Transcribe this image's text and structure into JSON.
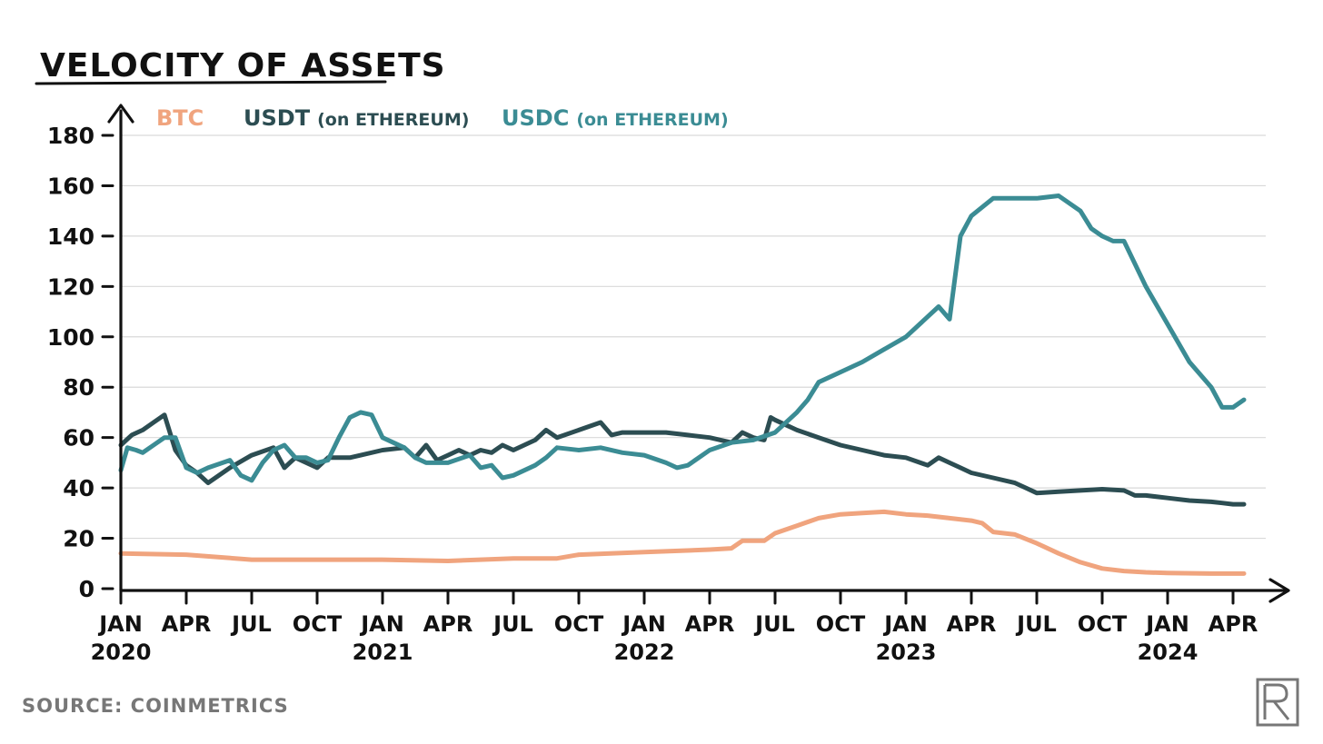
{
  "source_text": "SOURCE: COINMETRICS",
  "logo_icon": "publisher-logo-icon",
  "chart_data": {
    "type": "line",
    "title": "VELOCITY OF ASSETS",
    "xlabel": "",
    "ylabel": "",
    "ylim": [
      0,
      180
    ],
    "xlim": [
      0,
      52.5
    ],
    "x_unit": "months since Jan 2020",
    "yticks": [
      0,
      20,
      40,
      60,
      80,
      100,
      120,
      140,
      160,
      180
    ],
    "xticks": [
      {
        "m": 0,
        "label": "JAN",
        "year": "2020"
      },
      {
        "m": 3,
        "label": "APR",
        "year": ""
      },
      {
        "m": 6,
        "label": "JUL",
        "year": ""
      },
      {
        "m": 9,
        "label": "OCT",
        "year": ""
      },
      {
        "m": 12,
        "label": "JAN",
        "year": "2021"
      },
      {
        "m": 15,
        "label": "APR",
        "year": ""
      },
      {
        "m": 18,
        "label": "JUL",
        "year": ""
      },
      {
        "m": 21,
        "label": "OCT",
        "year": ""
      },
      {
        "m": 24,
        "label": "JAN",
        "year": "2022"
      },
      {
        "m": 27,
        "label": "APR",
        "year": ""
      },
      {
        "m": 30,
        "label": "JUL",
        "year": ""
      },
      {
        "m": 33,
        "label": "OCT",
        "year": ""
      },
      {
        "m": 36,
        "label": "JAN",
        "year": "2023"
      },
      {
        "m": 39,
        "label": "APR",
        "year": ""
      },
      {
        "m": 42,
        "label": "JUL",
        "year": ""
      },
      {
        "m": 45,
        "label": "OCT",
        "year": ""
      },
      {
        "m": 48,
        "label": "JAN",
        "year": "2024"
      },
      {
        "m": 51,
        "label": "APR",
        "year": ""
      }
    ],
    "grid": true,
    "legend_position": "top-left",
    "series": [
      {
        "name": "BTC",
        "label_suffix": "",
        "color": "#F0A47E",
        "x": [
          0,
          3,
          6,
          9,
          12,
          15,
          18,
          20,
          21,
          24,
          27,
          28,
          28.5,
          29.5,
          30,
          31,
          32,
          33,
          34,
          35,
          36,
          37,
          38,
          39,
          39.5,
          40,
          41,
          42,
          43,
          44,
          45,
          46,
          47,
          48,
          50,
          51,
          51.5
        ],
        "values": [
          14,
          13.5,
          11.5,
          11.5,
          11.5,
          11,
          12,
          12,
          13.5,
          14.5,
          15.5,
          16,
          19,
          19,
          22,
          25,
          28,
          29.5,
          30,
          30.5,
          29.5,
          29,
          28,
          27,
          26,
          22.5,
          21.5,
          18,
          14,
          10.5,
          8,
          7,
          6.5,
          6.2,
          6,
          6,
          6
        ]
      },
      {
        "name": "USDT",
        "label_suffix": "(on ETHEREUM)",
        "color": "#2C4D52",
        "x": [
          0,
          0.5,
          1,
          1.5,
          2,
          2.5,
          3,
          3.5,
          4,
          5,
          6,
          7,
          7.5,
          8,
          9,
          9.5,
          10,
          10.5,
          11,
          12,
          13,
          13.5,
          14,
          14.5,
          15,
          15.5,
          16,
          16.5,
          17,
          17.5,
          18,
          19,
          19.5,
          20,
          21,
          22,
          22.5,
          23,
          24,
          25,
          26,
          27,
          28,
          28.5,
          29,
          29.5,
          29.8,
          30,
          31,
          32,
          33,
          34,
          35,
          36,
          37,
          37.5,
          38,
          38.5,
          39,
          40,
          41,
          41.5,
          42,
          43,
          44,
          45,
          46,
          46.5,
          47,
          48,
          49,
          50,
          50.5,
          51,
          51.5
        ],
        "values": [
          57,
          61,
          63,
          66,
          69,
          55,
          49,
          46,
          42,
          48,
          53,
          56,
          48,
          52,
          48,
          52,
          52,
          52,
          53,
          55,
          56,
          52,
          57,
          51,
          53,
          55,
          53,
          55,
          54,
          57,
          55,
          59,
          63,
          60,
          63,
          66,
          61,
          62,
          62,
          62,
          61,
          60,
          58,
          62,
          60,
          59,
          68,
          67,
          63,
          60,
          57,
          55,
          53,
          52,
          49,
          52,
          50,
          48,
          46,
          44,
          42,
          40,
          38,
          38.5,
          39,
          39.5,
          39,
          37,
          37,
          36,
          35,
          34.5,
          34,
          33.5,
          33.5
        ]
      },
      {
        "name": "USDC",
        "label_suffix": "(on ETHEREUM)",
        "color": "#3B8C94",
        "x": [
          0,
          0.3,
          0.7,
          1,
          1.5,
          2,
          2.5,
          3,
          3.5,
          4,
          5,
          5.5,
          6,
          6.5,
          7,
          7.5,
          8,
          8.5,
          9,
          9.5,
          10,
          10.5,
          11,
          11.5,
          12,
          13,
          13.5,
          14,
          15,
          16,
          16.5,
          17,
          17.5,
          18,
          19,
          19.5,
          20,
          21,
          22,
          23,
          24,
          25,
          25.5,
          26,
          27,
          28,
          29,
          30,
          31,
          31.5,
          32,
          33,
          34,
          35,
          36,
          37,
          37.5,
          38,
          38.5,
          39,
          40,
          41,
          42,
          43,
          44,
          44.5,
          45,
          45.5,
          46,
          47,
          48,
          49,
          50,
          50.5,
          51,
          51.5
        ],
        "values": [
          47,
          56,
          55,
          54,
          57,
          60,
          60,
          48,
          46,
          48,
          51,
          45,
          43,
          50,
          55,
          57,
          52,
          52,
          50,
          51,
          60,
          68,
          70,
          69,
          60,
          56,
          52,
          50,
          50,
          53,
          48,
          49,
          44,
          45,
          49,
          52,
          56,
          55,
          56,
          54,
          53,
          50,
          48,
          49,
          55,
          58,
          59,
          62,
          70,
          75,
          82,
          86,
          90,
          95,
          100,
          108,
          112,
          107,
          140,
          148,
          155,
          155,
          155,
          156,
          150,
          143,
          140,
          138,
          138,
          120,
          105,
          90,
          80,
          72,
          72,
          75
        ]
      }
    ]
  }
}
